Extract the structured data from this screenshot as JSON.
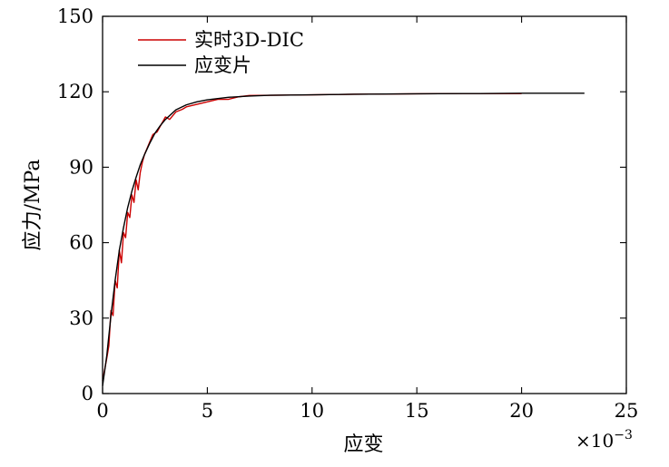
{
  "chart_data": {
    "type": "line",
    "xlabel": "应变",
    "ylabel": "应力/MPa",
    "x_exponent_label": "×10",
    "x_exponent_power": "−3",
    "xlim": [
      0,
      25
    ],
    "ylim": [
      0,
      150
    ],
    "xticks": [
      0,
      5,
      10,
      15,
      20,
      25
    ],
    "yticks": [
      0,
      30,
      60,
      90,
      120,
      150
    ],
    "x_tick_labels": [
      "0",
      "5",
      "10",
      "15",
      "20",
      "25"
    ],
    "y_tick_labels": [
      "0",
      "30",
      "60",
      "90",
      "120",
      "150"
    ],
    "grid": false,
    "legend_position": "top-left",
    "series": [
      {
        "name": "实时3D-DIC",
        "color": "#cc0000",
        "x": [
          0,
          0.2,
          0.3,
          0.4,
          0.5,
          0.6,
          0.7,
          0.8,
          0.9,
          1.0,
          1.1,
          1.2,
          1.3,
          1.4,
          1.5,
          1.6,
          1.7,
          1.8,
          1.9,
          2.0,
          2.2,
          2.4,
          2.6,
          2.8,
          3.0,
          3.2,
          3.5,
          3.8,
          4.0,
          4.5,
          5.0,
          5.5,
          6.0,
          6.5,
          7.0,
          8.0,
          10.0,
          12.0,
          15.0,
          18.0,
          20.0
        ],
        "y": [
          5,
          14,
          19,
          33,
          31,
          45,
          42,
          57,
          52,
          64,
          62,
          72,
          70,
          79,
          76,
          85,
          81,
          88,
          92,
          95,
          99,
          103,
          104,
          107,
          110,
          109,
          112,
          113,
          114,
          115,
          116,
          117,
          117,
          118,
          118.5,
          118.6,
          118.8,
          119,
          119.2,
          119.3,
          119.3
        ]
      },
      {
        "name": "应变片",
        "color": "#000000",
        "x": [
          0,
          0.2,
          0.4,
          0.6,
          0.8,
          1.0,
          1.2,
          1.4,
          1.6,
          1.8,
          2.0,
          2.25,
          2.5,
          2.75,
          3.0,
          3.5,
          4.0,
          4.5,
          5.0,
          6.0,
          7.0,
          8.0,
          10.0,
          12.0,
          15.0,
          18.0,
          20.0,
          22.0,
          23.0
        ],
        "y": [
          3,
          15,
          31,
          45,
          57,
          66,
          74,
          80.5,
          86,
          91,
          95,
          99.5,
          103.5,
          106.5,
          109,
          112.8,
          114.8,
          116,
          116.8,
          117.8,
          118.3,
          118.6,
          118.8,
          119,
          119.2,
          119.3,
          119.4,
          119.4,
          119.4
        ]
      }
    ]
  }
}
